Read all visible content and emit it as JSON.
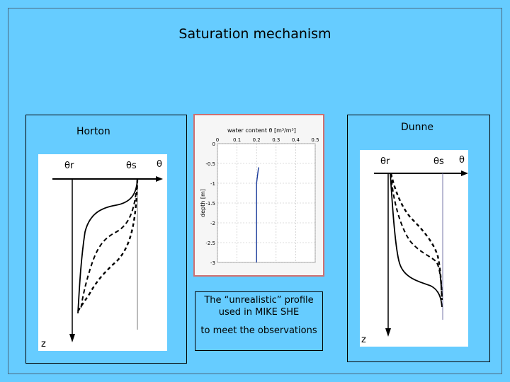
{
  "title": "Saturation mechanism",
  "left_panel": {
    "label": "Horton",
    "theta_r": "θr",
    "theta_s": "θs",
    "theta": "θ",
    "z": "z"
  },
  "right_panel": {
    "label": "Dunne",
    "theta_r": "θr",
    "theta_s": "θs",
    "theta": "θ",
    "z": "z"
  },
  "center_chart": {
    "xlabel": "water content θ [m³/m³]",
    "ylabel": "depth [m]",
    "x_ticks": [
      "0",
      "0.1",
      "0.2",
      "0.3",
      "0.4",
      "0.5"
    ],
    "y_ticks": [
      "0",
      "-0.5",
      "-1",
      "-1.5",
      "-2",
      "-2.5",
      "-3"
    ]
  },
  "caption": {
    "line1": "The “unrealistic” profile used in  MIKE SHE",
    "line2": "to meet the observations"
  },
  "chart_data": {
    "type": "line",
    "xlabel": "water content θ [m³/m³]",
    "ylabel": "depth [m]",
    "xlim": [
      0,
      0.5
    ],
    "ylim": [
      -3,
      0
    ],
    "grid": true,
    "series": [
      {
        "x": [
          0.21,
          0.205,
          0.2,
          0.2,
          0.2,
          0.2
        ],
        "y": [
          -0.6,
          -0.8,
          -1.0,
          -1.5,
          -2.5,
          -3.0
        ]
      }
    ]
  }
}
